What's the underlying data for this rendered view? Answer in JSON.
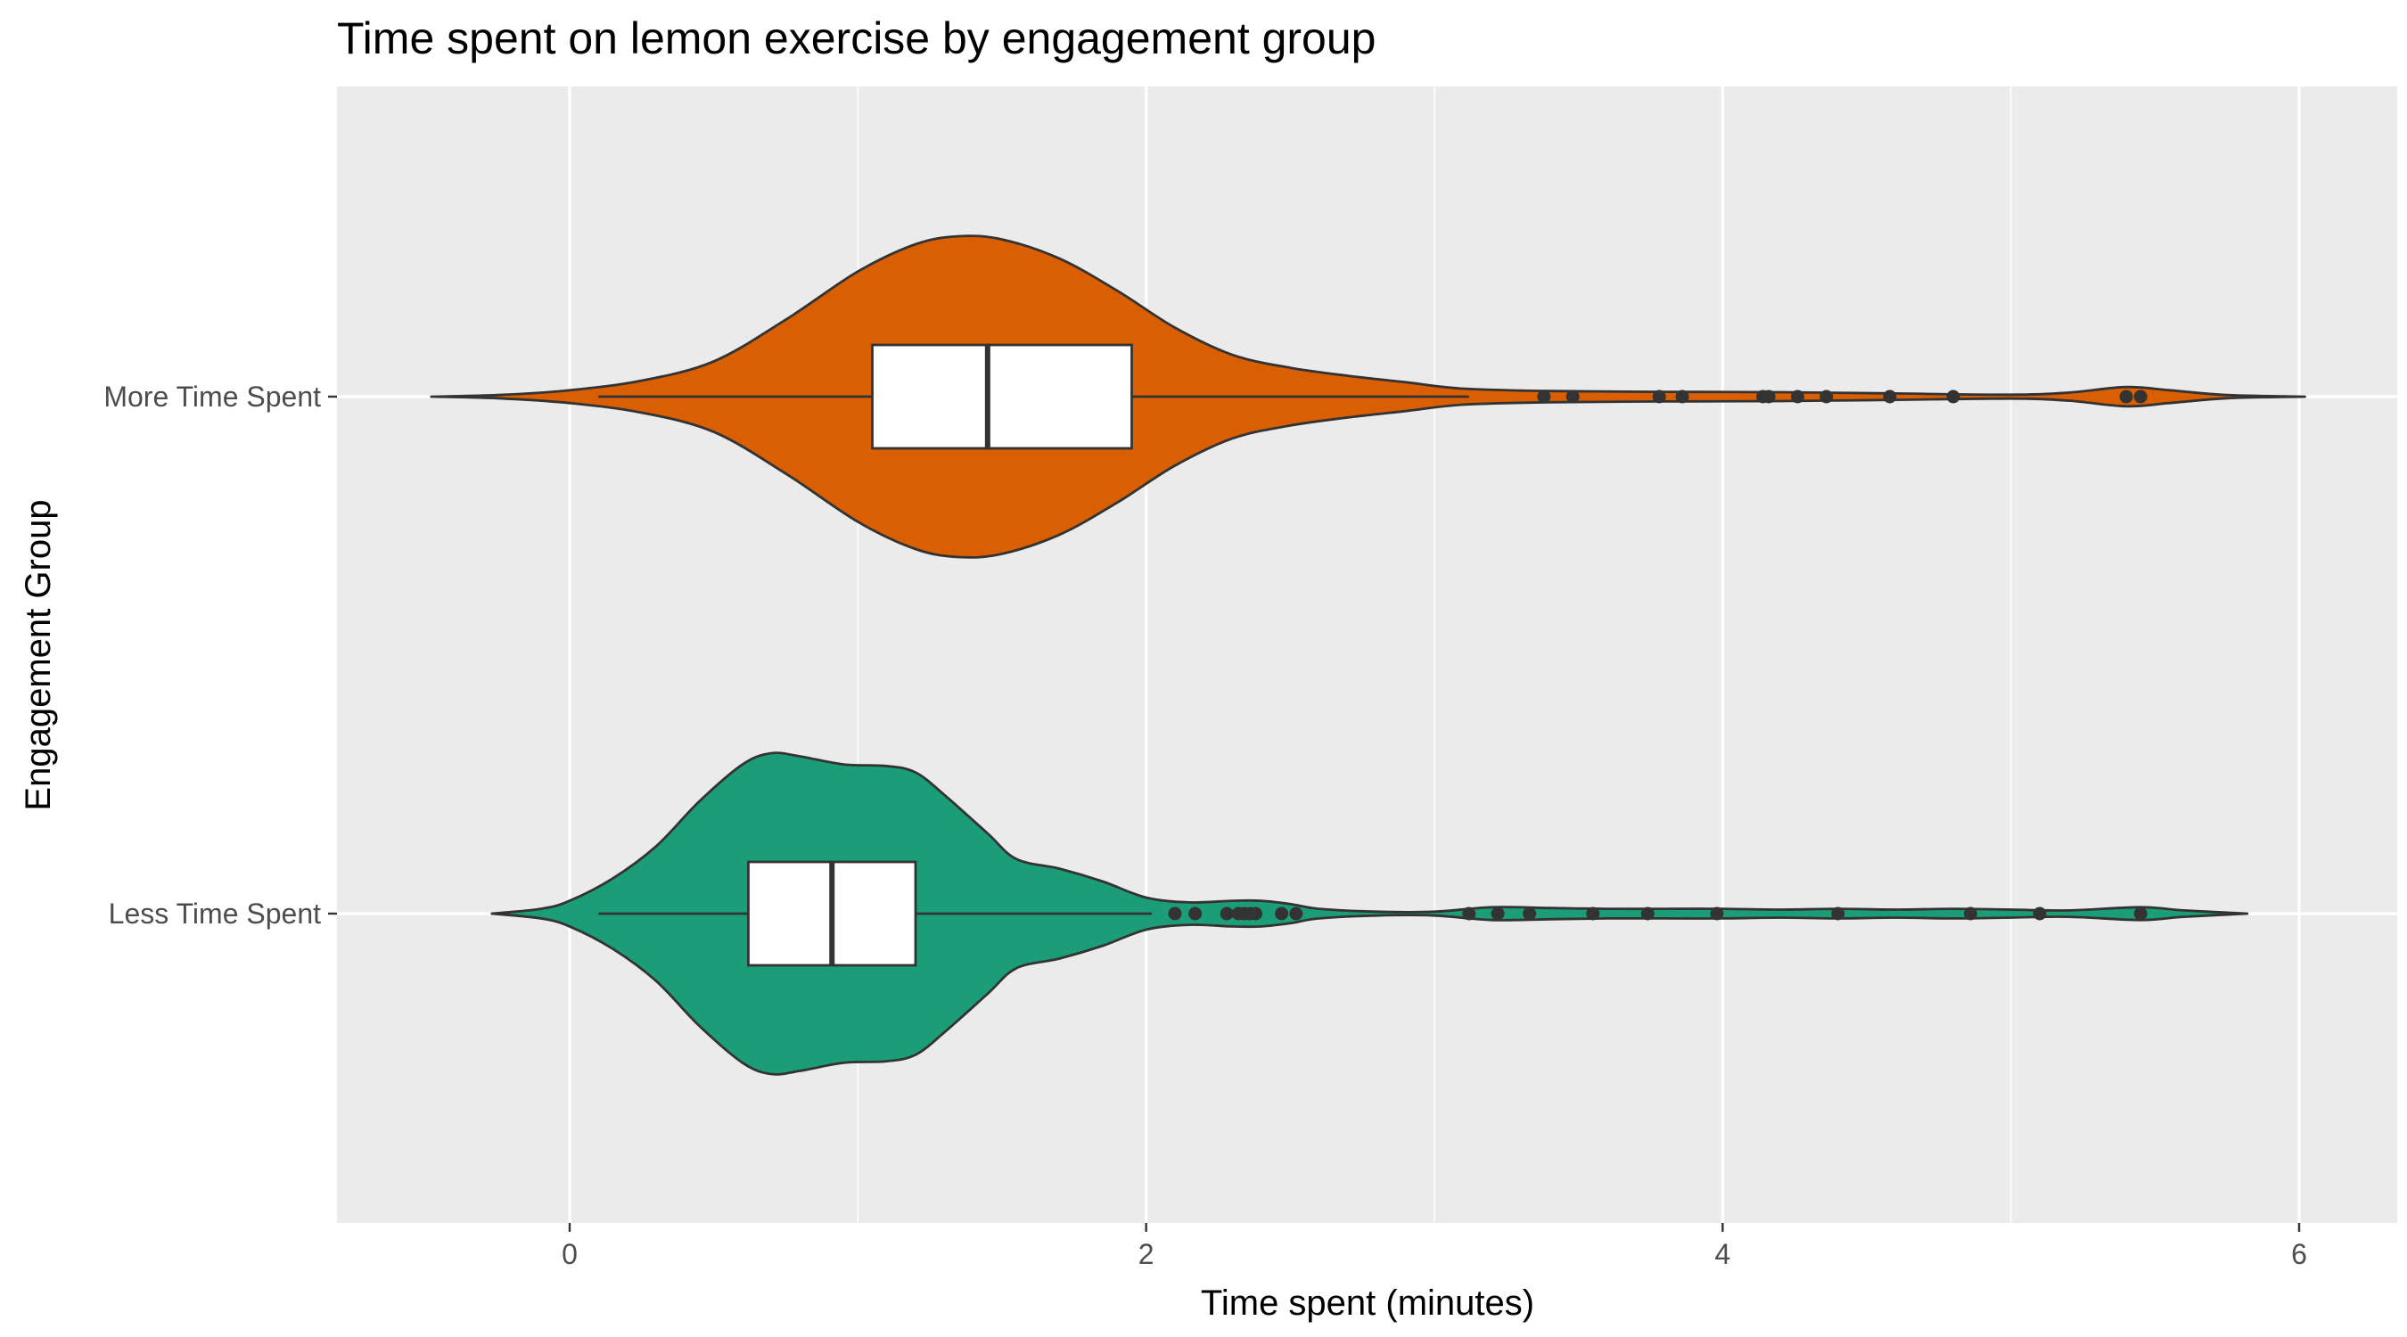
{
  "chart_data": {
    "type": "violin",
    "title": "Time spent on lemon exercise by engagement group",
    "xlabel": "Time spent (minutes)",
    "ylabel": "Engagement Group",
    "xlim": [
      -0.8,
      6.2
    ],
    "x_ticks": [
      0,
      2,
      4,
      6
    ],
    "grid": true,
    "legend": "none",
    "categories": [
      "More Time Spent",
      "Less Time Spent"
    ],
    "series": [
      {
        "name": "More Time Spent",
        "color": "#D95F02",
        "violin_range": [
          -0.48,
          6.02
        ],
        "density_profile": [
          [
            -0.48,
            0.0
          ],
          [
            -0.25,
            0.01
          ],
          [
            0.0,
            0.04
          ],
          [
            0.25,
            0.1
          ],
          [
            0.5,
            0.22
          ],
          [
            0.75,
            0.48
          ],
          [
            1.0,
            0.78
          ],
          [
            1.2,
            0.95
          ],
          [
            1.35,
            1.0
          ],
          [
            1.5,
            0.98
          ],
          [
            1.7,
            0.86
          ],
          [
            1.9,
            0.66
          ],
          [
            2.1,
            0.43
          ],
          [
            2.3,
            0.26
          ],
          [
            2.5,
            0.18
          ],
          [
            2.7,
            0.13
          ],
          [
            2.9,
            0.09
          ],
          [
            3.1,
            0.05
          ],
          [
            3.4,
            0.035
          ],
          [
            3.8,
            0.03
          ],
          [
            4.2,
            0.028
          ],
          [
            4.6,
            0.02
          ],
          [
            5.0,
            0.012
          ],
          [
            5.2,
            0.025
          ],
          [
            5.4,
            0.06
          ],
          [
            5.55,
            0.04
          ],
          [
            5.75,
            0.01
          ],
          [
            6.02,
            0.0
          ]
        ],
        "box": {
          "whisker_low": 0.1,
          "q1": 1.05,
          "median": 1.45,
          "q3": 1.95,
          "whisker_high": 3.12
        },
        "outliers": [
          3.38,
          3.48,
          3.78,
          3.86,
          4.14,
          4.16,
          4.26,
          4.36,
          4.58,
          4.8,
          5.4,
          5.45
        ]
      },
      {
        "name": "Less Time Spent",
        "color": "#1B9E77",
        "violin_range": [
          -0.27,
          5.82
        ],
        "density_profile": [
          [
            -0.27,
            0.0
          ],
          [
            -0.1,
            0.03
          ],
          [
            0.0,
            0.08
          ],
          [
            0.15,
            0.22
          ],
          [
            0.3,
            0.42
          ],
          [
            0.45,
            0.7
          ],
          [
            0.6,
            0.93
          ],
          [
            0.7,
            1.0
          ],
          [
            0.8,
            0.98
          ],
          [
            0.95,
            0.93
          ],
          [
            1.1,
            0.92
          ],
          [
            1.2,
            0.88
          ],
          [
            1.3,
            0.74
          ],
          [
            1.45,
            0.5
          ],
          [
            1.55,
            0.34
          ],
          [
            1.7,
            0.28
          ],
          [
            1.85,
            0.2
          ],
          [
            2.0,
            0.1
          ],
          [
            2.15,
            0.07
          ],
          [
            2.3,
            0.08
          ],
          [
            2.4,
            0.08
          ],
          [
            2.5,
            0.06
          ],
          [
            2.6,
            0.03
          ],
          [
            2.8,
            0.012
          ],
          [
            3.0,
            0.012
          ],
          [
            3.2,
            0.04
          ],
          [
            3.4,
            0.035
          ],
          [
            3.6,
            0.03
          ],
          [
            3.8,
            0.03
          ],
          [
            4.0,
            0.03
          ],
          [
            4.2,
            0.025
          ],
          [
            4.4,
            0.03
          ],
          [
            4.6,
            0.025
          ],
          [
            4.8,
            0.03
          ],
          [
            5.0,
            0.025
          ],
          [
            5.2,
            0.02
          ],
          [
            5.45,
            0.04
          ],
          [
            5.6,
            0.02
          ],
          [
            5.82,
            0.0
          ]
        ],
        "box": {
          "whisker_low": 0.1,
          "q1": 0.62,
          "median": 0.91,
          "q3": 1.2,
          "whisker_high": 2.02
        },
        "outliers": [
          2.1,
          2.17,
          2.28,
          2.32,
          2.34,
          2.36,
          2.38,
          2.47,
          2.52,
          3.12,
          3.22,
          3.33,
          3.55,
          3.74,
          3.98,
          4.4,
          4.86,
          5.1,
          5.45
        ]
      }
    ]
  },
  "colors": {
    "panel_background": "#EBEBEB",
    "grid_line": "#FFFFFF",
    "outline": "#333333",
    "box_fill": "#FFFFFF"
  }
}
